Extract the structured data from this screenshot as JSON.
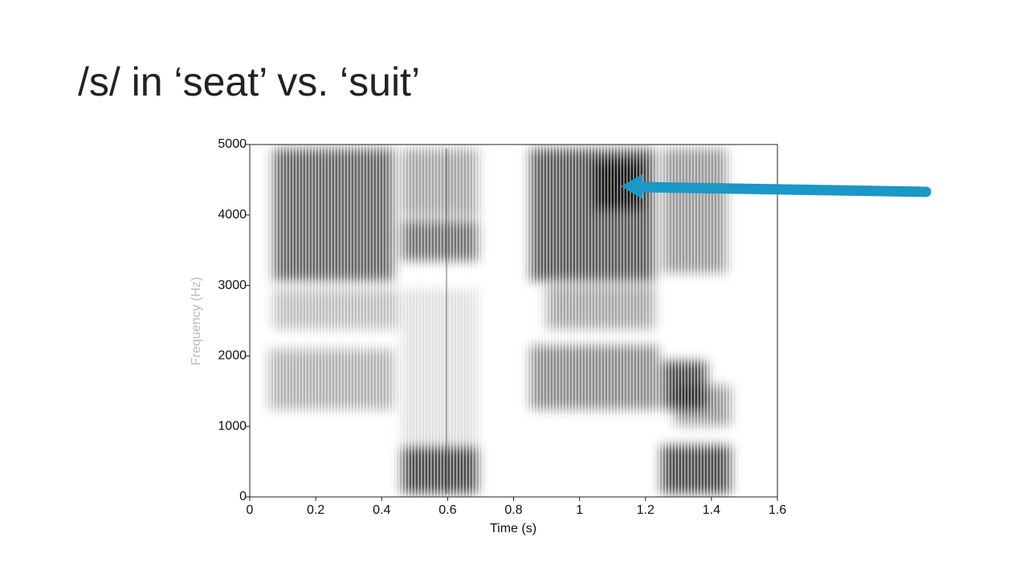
{
  "chart_data": {
    "type": "spectrogram",
    "title": "/s/ in ‘seat’ vs. ‘suit’",
    "x_label": "Time (s)",
    "y_label": "Frequency (Hz)",
    "xlim": [
      0,
      1.6
    ],
    "xticks": [
      0,
      0.2,
      0.4,
      0.6,
      0.8,
      1,
      1.2,
      1.4,
      1.6
    ],
    "ylim": [
      0,
      5000
    ],
    "yticks": [
      0,
      1000,
      2000,
      3000,
      4000,
      5000
    ]
  }
}
